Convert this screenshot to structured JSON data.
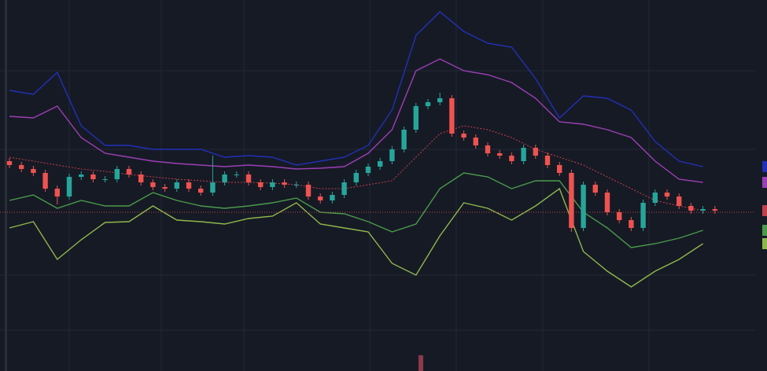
{
  "chart_data": {
    "type": "candlestick",
    "xlim": [
      -0.79,
      62.37
    ],
    "ylim": [
      0,
      472
    ],
    "up_color": "#26a69a",
    "down_color": "#ef5350",
    "x": [
      0,
      1,
      2,
      3,
      4,
      5,
      6,
      7,
      8,
      9,
      10,
      11,
      12,
      13,
      14,
      15,
      16,
      17,
      18,
      19,
      20,
      21,
      22,
      23,
      24,
      25,
      26,
      27,
      28,
      29,
      30,
      31,
      32,
      33,
      34,
      35,
      36,
      37,
      38,
      39,
      40,
      41,
      42,
      43,
      44,
      45,
      46,
      47,
      48,
      49,
      50,
      51,
      52,
      53,
      54,
      55,
      56,
      57,
      58,
      59
    ],
    "open": [
      267,
      262,
      257,
      252,
      232,
      222,
      247,
      250,
      244,
      244,
      257,
      250,
      240,
      234,
      232,
      240,
      232,
      227,
      240,
      250,
      250,
      240,
      234,
      240,
      237,
      237,
      222,
      217,
      224,
      240,
      252,
      260,
      267,
      282,
      307,
      337,
      342,
      347,
      302,
      297,
      287,
      277,
      274,
      267,
      284,
      274,
      262,
      252,
      182,
      237,
      227,
      202,
      192,
      182,
      214,
      227,
      222,
      210,
      204,
      206
    ],
    "high": [
      271,
      266,
      261,
      256,
      236,
      251,
      254,
      254,
      248,
      261,
      261,
      254,
      244,
      238,
      244,
      244,
      236,
      274,
      254,
      254,
      254,
      244,
      244,
      244,
      241,
      241,
      226,
      228,
      244,
      256,
      264,
      271,
      286,
      311,
      341,
      346,
      354,
      351,
      306,
      301,
      291,
      281,
      278,
      288,
      288,
      278,
      266,
      256,
      241,
      241,
      231,
      206,
      196,
      218,
      231,
      231,
      226,
      214,
      210,
      210
    ],
    "low": [
      258,
      253,
      248,
      228,
      212,
      218,
      243,
      240,
      240,
      240,
      246,
      236,
      230,
      228,
      228,
      228,
      223,
      223,
      236,
      246,
      236,
      230,
      230,
      233,
      233,
      218,
      213,
      213,
      220,
      236,
      248,
      256,
      263,
      278,
      303,
      333,
      338,
      298,
      293,
      283,
      273,
      270,
      263,
      263,
      270,
      258,
      248,
      177,
      178,
      223,
      198,
      188,
      178,
      178,
      210,
      218,
      206,
      200,
      200,
      200
    ],
    "close": [
      262,
      257,
      252,
      232,
      222,
      247,
      250,
      244,
      244,
      257,
      250,
      240,
      234,
      232,
      240,
      232,
      227,
      240,
      250,
      250,
      240,
      234,
      240,
      237,
      237,
      222,
      217,
      224,
      240,
      252,
      260,
      267,
      282,
      307,
      337,
      342,
      347,
      302,
      297,
      287,
      277,
      274,
      267,
      284,
      274,
      262,
      252,
      182,
      237,
      227,
      202,
      192,
      182,
      214,
      227,
      222,
      210,
      204,
      206,
      204
    ],
    "price_line": {
      "value": 202,
      "color": "#c0404a"
    },
    "lines": [
      {
        "color": "#2230b8",
        "dash": false,
        "x": [
          0,
          2,
          4,
          6,
          8,
          10,
          12,
          14,
          16,
          18,
          20,
          22,
          24,
          26,
          28,
          30,
          32,
          34,
          36,
          38,
          40,
          42,
          44,
          46,
          48,
          50,
          52,
          54,
          56,
          58
        ],
        "values": [
          357,
          352,
          380,
          312,
          287,
          287,
          282,
          282,
          282,
          272,
          274,
          272,
          262,
          267,
          272,
          287,
          332,
          427,
          457,
          432,
          417,
          412,
          372,
          322,
          350,
          347,
          332,
          292,
          267,
          260
        ]
      },
      {
        "color": "#9c3fb5",
        "dash": false,
        "x": [
          0,
          2,
          4,
          6,
          8,
          10,
          12,
          14,
          16,
          18,
          20,
          22,
          24,
          26,
          28,
          30,
          32,
          34,
          36,
          38,
          40,
          42,
          44,
          46,
          48,
          50,
          52,
          54,
          56,
          58
        ],
        "values": [
          324,
          322,
          337,
          297,
          277,
          272,
          267,
          264,
          262,
          260,
          262,
          260,
          257,
          258,
          260,
          277,
          307,
          382,
          397,
          382,
          377,
          367,
          347,
          317,
          314,
          307,
          297,
          267,
          244,
          240
        ]
      },
      {
        "color": "#c0404a",
        "dash": true,
        "x": [
          0,
          2,
          4,
          6,
          8,
          10,
          12,
          14,
          16,
          18,
          20,
          22,
          24,
          26,
          28,
          30,
          32,
          34,
          36,
          38,
          40,
          42,
          44,
          46,
          48,
          50,
          52,
          54,
          56,
          58
        ],
        "values": [
          272,
          267,
          262,
          257,
          254,
          250,
          247,
          244,
          242,
          240,
          240,
          239,
          237,
          232,
          232,
          237,
          242,
          272,
          302,
          312,
          307,
          297,
          282,
          272,
          262,
          247,
          232,
          217,
          210,
          204
        ]
      },
      {
        "color": "#4a9a4a",
        "dash": false,
        "x": [
          0,
          2,
          4,
          6,
          8,
          10,
          12,
          14,
          16,
          18,
          20,
          22,
          24,
          26,
          28,
          30,
          32,
          34,
          36,
          38,
          40,
          42,
          44,
          46,
          48,
          50,
          52,
          54,
          56,
          58
        ],
        "values": [
          217,
          224,
          207,
          217,
          210,
          210,
          227,
          217,
          210,
          207,
          210,
          214,
          220,
          202,
          200,
          190,
          177,
          187,
          232,
          252,
          247,
          232,
          242,
          242,
          202,
          182,
          157,
          162,
          169,
          179
        ]
      },
      {
        "color": "#8fb84a",
        "dash": false,
        "x": [
          0,
          2,
          4,
          6,
          8,
          10,
          12,
          14,
          16,
          18,
          20,
          22,
          24,
          26,
          28,
          30,
          32,
          34,
          36,
          38,
          40,
          42,
          44,
          46,
          48,
          50,
          52,
          54,
          56,
          58
        ],
        "values": [
          182,
          190,
          142,
          167,
          189,
          190,
          210,
          192,
          190,
          187,
          194,
          197,
          214,
          187,
          182,
          177,
          137,
          122,
          172,
          214,
          207,
          192,
          210,
          232,
          152,
          127,
          107,
          127,
          142,
          162
        ]
      }
    ]
  }
}
